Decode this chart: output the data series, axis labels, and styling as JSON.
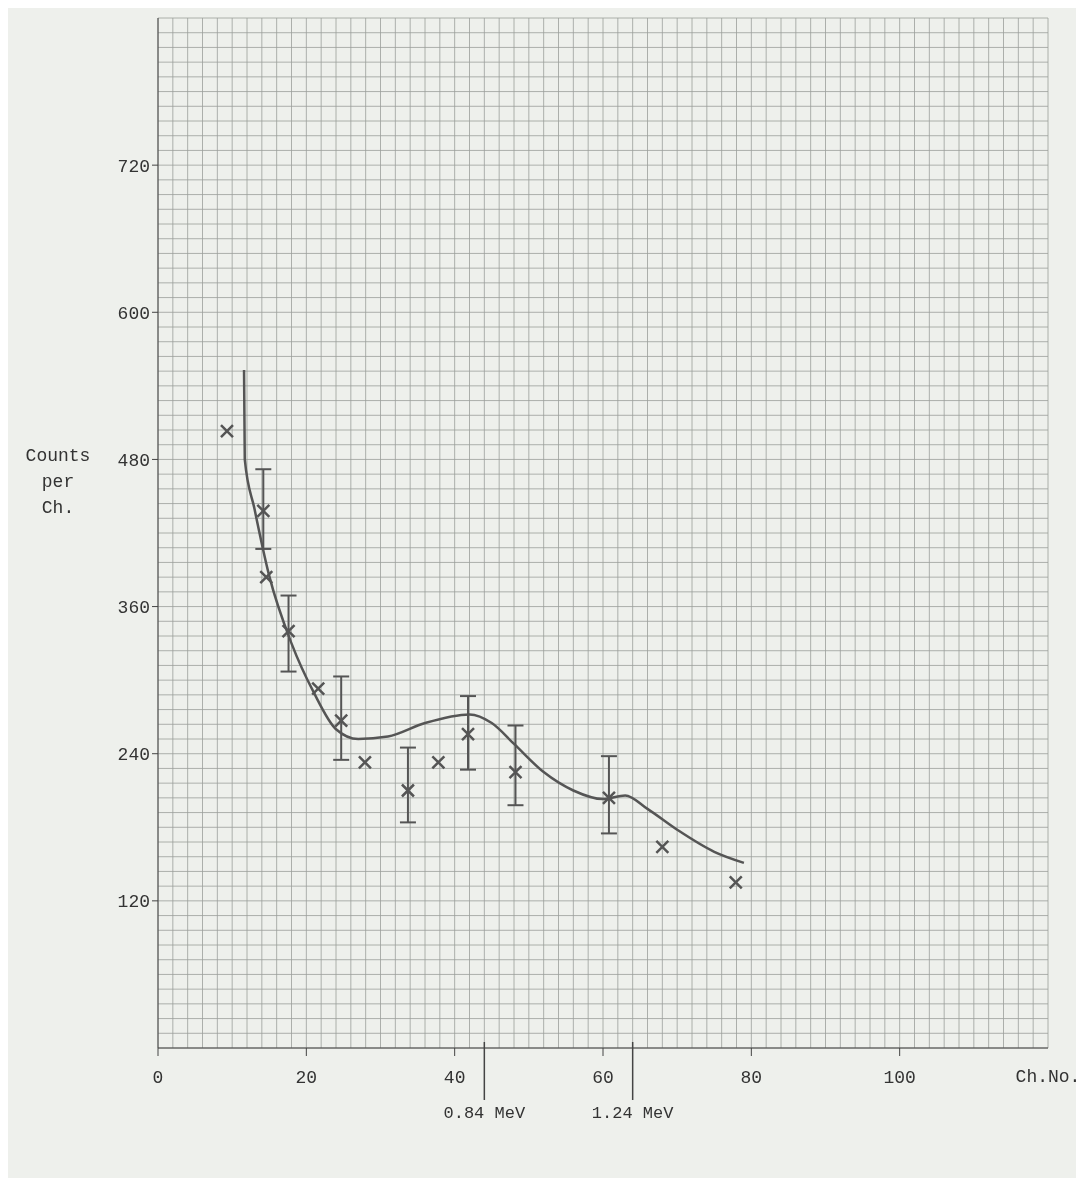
{
  "chart_data": {
    "type": "scatter",
    "xlabel": "Ch.No.",
    "ylabel": "Counts per Ch.",
    "xlim": [
      0,
      120
    ],
    "xticks": [
      0,
      20,
      40,
      60,
      80,
      100
    ],
    "ylim": [
      0,
      840
    ],
    "yticks": [
      120,
      240,
      360,
      480,
      600,
      720
    ],
    "grid": true,
    "marker": "cross",
    "legend": false,
    "series": [
      {
        "color": "#555555",
        "x": [
          9.3,
          14.2,
          14.6,
          17.6,
          21.6,
          24.7,
          27.9,
          33.7,
          37.8,
          41.8,
          48.2,
          60.8,
          68,
          77.9
        ],
        "values": [
          503,
          438,
          384,
          340,
          293,
          267,
          233,
          210,
          233,
          256,
          225,
          204,
          164,
          135
        ],
        "errors": [
          null,
          [
            407,
            472
          ],
          null,
          [
            307,
            369
          ],
          null,
          [
            235,
            303
          ],
          null,
          [
            184,
            245
          ],
          null,
          [
            227,
            287
          ],
          [
            198,
            263
          ],
          [
            175,
            238
          ],
          null,
          null
        ]
      },
      {
        "type": "line",
        "color": "#555555",
        "marker": "none",
        "line_style": "solid",
        "x": [
          11.6,
          11.7,
          13,
          15,
          18,
          21,
          24,
          27,
          31,
          36,
          42,
          45,
          48,
          52,
          56,
          60,
          63,
          66,
          70,
          75,
          79
        ],
        "values": [
          553,
          480,
          440,
          385,
          330,
          290,
          260,
          252,
          254,
          265,
          272,
          265,
          248,
          225,
          210,
          203,
          206,
          195,
          178,
          160,
          151
        ]
      }
    ],
    "ref_lines": [
      {
        "axis": "x",
        "value": 44,
        "label": "0.84 MeV"
      },
      {
        "axis": "x",
        "value": 64,
        "label": "1.24 MeV"
      }
    ]
  }
}
